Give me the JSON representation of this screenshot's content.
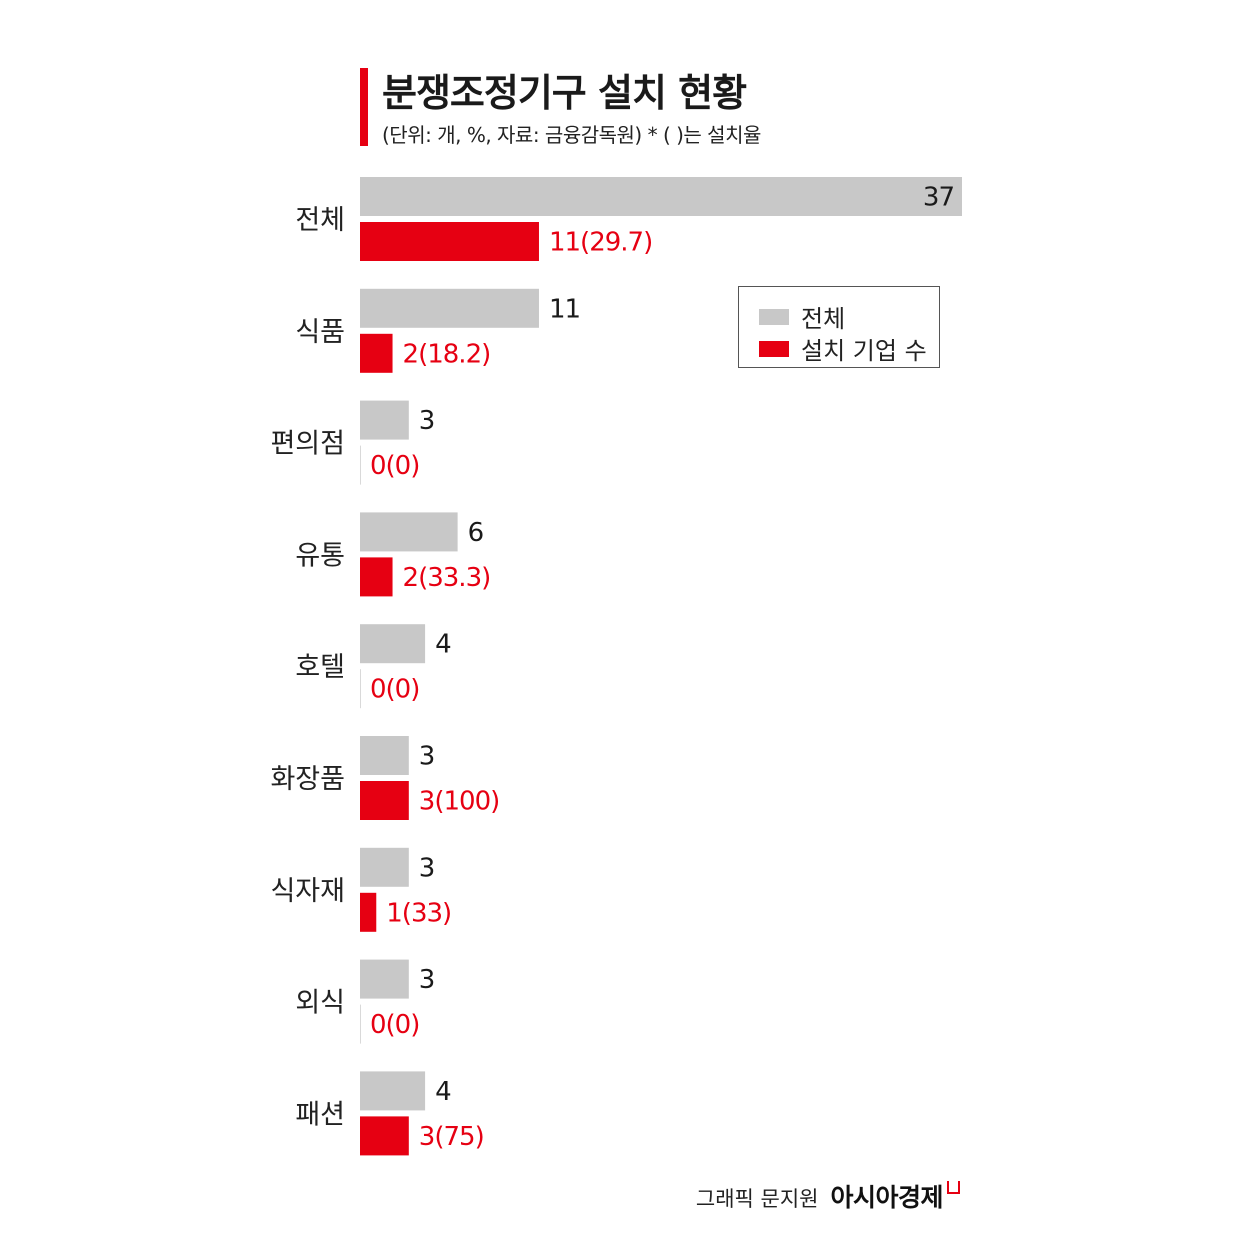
{
  "title": "분쟁조정기구 설치 현황",
  "subtitle": "(단위: 개, %, 자료: 금융감독원)  * ( )는 설치율",
  "colors": {
    "total": "#c8c8c8",
    "installed": "#e60012",
    "accent": "#e60012"
  },
  "legend": {
    "total_label": "전체",
    "installed_label": "설치 기업 수"
  },
  "credit": {
    "text": "그래픽 문지원",
    "brand": "아시아경제"
  },
  "chart_data": {
    "type": "bar",
    "orientation": "horizontal",
    "categories": [
      "전체",
      "식품",
      "편의점",
      "유통",
      "호텔",
      "화장품",
      "식자재",
      "외식",
      "패션"
    ],
    "series": [
      {
        "name": "전체",
        "values": [
          37,
          11,
          3,
          6,
          4,
          3,
          3,
          3,
          4
        ],
        "labels": [
          "37",
          "11",
          "3",
          "6",
          "4",
          "3",
          "3",
          "3",
          "4"
        ]
      },
      {
        "name": "설치 기업 수",
        "values": [
          11,
          2,
          0,
          2,
          0,
          3,
          1,
          0,
          3
        ],
        "labels": [
          "11(29.7)",
          "2(18.2)",
          "0(0)",
          "2(33.3)",
          "0(0)",
          "3(100)",
          "1(33)",
          "0(0)",
          "3(75)"
        ]
      }
    ],
    "legend_position": "top-right",
    "grid": false
  }
}
